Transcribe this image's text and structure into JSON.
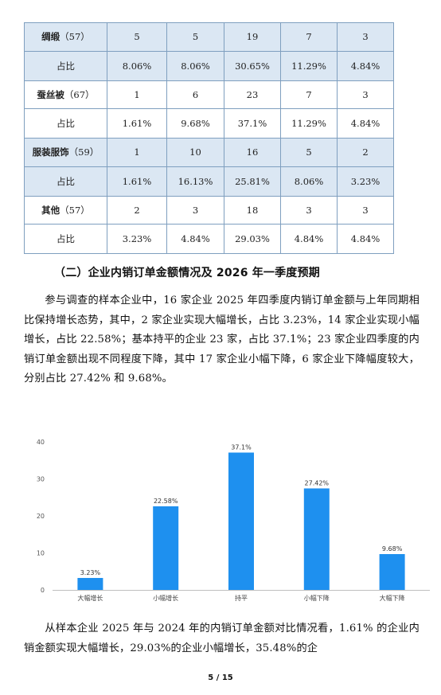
{
  "table": {
    "rows": [
      {
        "label": "绸缎",
        "count": "（57）",
        "values": [
          "5",
          "5",
          "19",
          "7",
          "3"
        ]
      },
      {
        "label": "占比",
        "values": [
          "8.06%",
          "8.06%",
          "30.65%",
          "11.29%",
          "4.84%"
        ]
      },
      {
        "label": "蚕丝被",
        "count": "（67）",
        "values": [
          "1",
          "6",
          "23",
          "7",
          "3"
        ]
      },
      {
        "label": "占比",
        "values": [
          "1.61%",
          "9.68%",
          "37.1%",
          "11.29%",
          "4.84%"
        ]
      },
      {
        "label": "服装服饰",
        "count": "（59）",
        "values": [
          "1",
          "10",
          "16",
          "5",
          "2"
        ]
      },
      {
        "label": "占比",
        "values": [
          "1.61%",
          "16.13%",
          "25.81%",
          "8.06%",
          "3.23%"
        ]
      },
      {
        "label": "其他",
        "count": "（57）",
        "values": [
          "2",
          "3",
          "18",
          "3",
          "3"
        ]
      },
      {
        "label": "占比",
        "values": [
          "3.23%",
          "4.84%",
          "29.03%",
          "4.84%",
          "4.84%"
        ]
      }
    ]
  },
  "section": {
    "title": "（二）企业内销订单金额情况及 2026 年一季度预期"
  },
  "paragraphs": {
    "p1": "参与调查的样本企业中，16 家企业 2025 年四季度内销订单金额与上年同期相比保持增长态势，其中，2 家企业实现大幅增长，占比 3.23%，14 家企业实现小幅增长，占比 22.58%；基本持平的企业 23 家，占比 37.1%；23 家企业四季度的内销订单金额出现不同程度下降，其中 17 家企业小幅下降，6 家企业下降幅度较大，分别占比 27.42% 和 9.68%。",
    "p2": "从样本企业 2025 年与 2024 年的内销订单金额对比情况看，1.61% 的企业内销金额实现大幅增长，29.03%的企业小幅增长，35.48%的企"
  },
  "chart_data": {
    "type": "bar",
    "categories": [
      "大幅增长",
      "小幅增长",
      "持平",
      "小幅下降",
      "大幅下降"
    ],
    "values": [
      3.23,
      22.58,
      37.1,
      27.42,
      9.68
    ],
    "data_labels": [
      "3.23%",
      "22.58%",
      "37.1%",
      "27.42%",
      "9.68%"
    ],
    "ylim": [
      0,
      40
    ],
    "yticks": [
      0,
      10,
      20,
      30,
      40
    ],
    "bar_color": "#1e90ef",
    "grid": false,
    "title": "",
    "xlabel": "",
    "ylabel": ""
  },
  "footer": {
    "page": "5 / 15"
  }
}
